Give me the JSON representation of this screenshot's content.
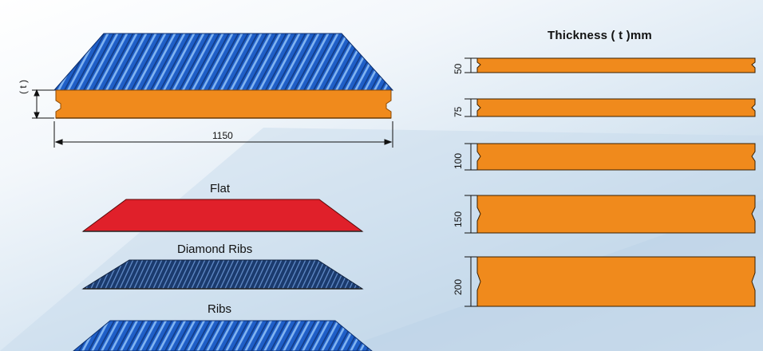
{
  "title": "Thickness ( t )mm",
  "main_panel": {
    "width_label": "1150",
    "thickness_label": "( t )"
  },
  "profile_types": [
    "Flat",
    "Diamond Ribs",
    "Ribs"
  ],
  "thickness_options": [
    "50",
    "75",
    "100",
    "150",
    "200"
  ],
  "colors": {
    "sheet_blue": "#1f5fc8",
    "core_orange": "#f08a1c",
    "flat_red": "#e0202a",
    "diamond_navy": "#1b3b6e"
  }
}
